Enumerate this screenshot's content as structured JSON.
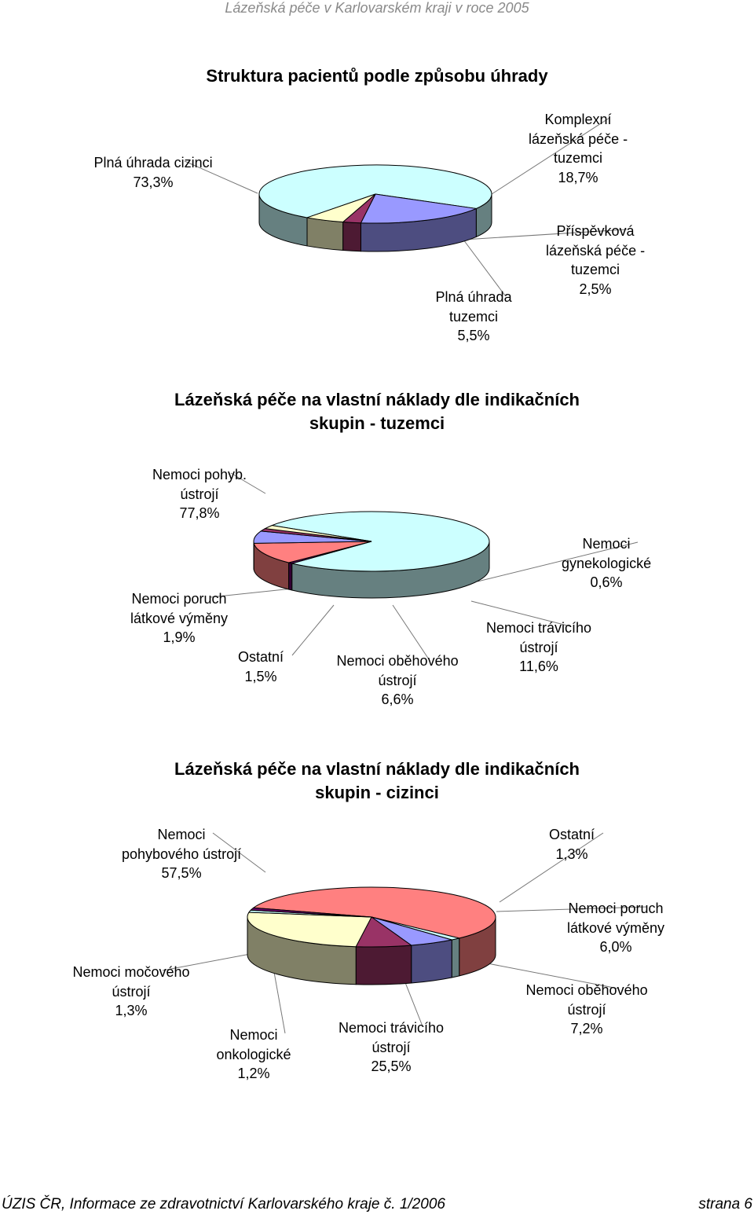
{
  "header": {
    "text": "Lázeňská péče v Karlovarském kraji v roce 2005"
  },
  "footer": {
    "source": "ÚZIS ČR, Informace ze zdravotnictví Karlovarského kraje č. 1/2006",
    "page": "strana 6"
  },
  "chart_data": [
    {
      "type": "pie",
      "title": "Struktura pacientů podle způsobu úhrady",
      "slices": [
        {
          "label": [
            "Plná úhrada cizinci"
          ],
          "value": 73.3,
          "value_text": "73,3%",
          "color": "#ccffff"
        },
        {
          "label": [
            "Komplexní",
            "lázeňská péče -",
            "tuzemci"
          ],
          "value": 18.7,
          "value_text": "18,7%",
          "color": "#9999ff"
        },
        {
          "label": [
            "Příspěvková",
            "lázeňská péče -",
            "tuzemci"
          ],
          "value": 2.5,
          "value_text": "2,5%",
          "color": "#993366"
        },
        {
          "label": [
            "Plná úhrada",
            "tuzemci"
          ],
          "value": 5.5,
          "value_text": "5,5%",
          "color": "#ffffcc"
        }
      ]
    },
    {
      "type": "pie",
      "title": [
        "Lázeňská péče na vlastní náklady dle indikačních",
        "skupin - tuzemci"
      ],
      "slices": [
        {
          "label": [
            "Nemoci pohyb.",
            "ústrojí"
          ],
          "value": 77.8,
          "value_text": "77,8%",
          "color": "#ccffff"
        },
        {
          "label": [
            "Nemoci",
            "gynekologické"
          ],
          "value": 0.6,
          "value_text": "0,6%",
          "color": "#660066"
        },
        {
          "label": [
            "Nemoci trávicího",
            "ústrojí"
          ],
          "value": 11.6,
          "value_text": "11,6%",
          "color": "#ff8080"
        },
        {
          "label": [
            "Nemoci oběhového",
            "ústrojí"
          ],
          "value": 6.6,
          "value_text": "6,6%",
          "color": "#9999ff"
        },
        {
          "label": [
            "Ostatní"
          ],
          "value": 1.5,
          "value_text": "1,5%",
          "color": "#993366"
        },
        {
          "label": [
            "Nemoci poruch",
            "látkové výměny"
          ],
          "value": 1.9,
          "value_text": "1,9%",
          "color": "#ffffcc"
        }
      ]
    },
    {
      "type": "pie",
      "title": [
        "Lázeňská péče na vlastní náklady dle indikačních",
        "skupin - cizinci"
      ],
      "slices": [
        {
          "label": [
            "Nemoci",
            "pohybového ústrojí"
          ],
          "value": 57.5,
          "value_text": "57,5%",
          "color": "#ff8080"
        },
        {
          "label": [
            "Ostatní"
          ],
          "value": 1.3,
          "value_text": "1,3%",
          "color": "#ccffff"
        },
        {
          "label": [
            "Nemoci poruch",
            "látkové výměny"
          ],
          "value": 6.0,
          "value_text": "6,0%",
          "color": "#9999ff"
        },
        {
          "label": [
            "Nemoci oběhového",
            "ústrojí"
          ],
          "value": 7.2,
          "value_text": "7,2%",
          "color": "#993366"
        },
        {
          "label": [
            "Nemoci trávicího",
            "ústrojí"
          ],
          "value": 25.5,
          "value_text": "25,5%",
          "color": "#ffffcc"
        },
        {
          "label": [
            "Nemoci",
            "onkologické"
          ],
          "value": 1.2,
          "value_text": "1,2%",
          "color": "#ccffff"
        },
        {
          "label": [
            "Nemoci močového",
            "ústrojí"
          ],
          "value": 1.3,
          "value_text": "1,3%",
          "color": "#660066"
        }
      ]
    }
  ]
}
